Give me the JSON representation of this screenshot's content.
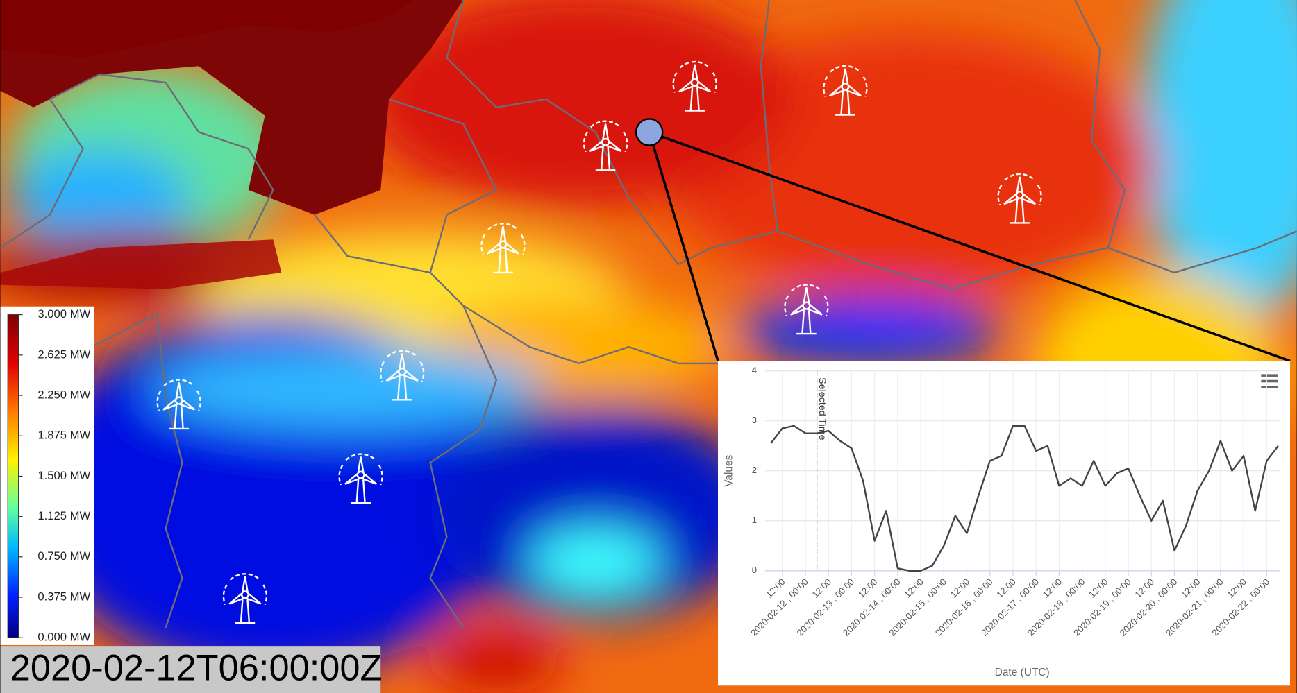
{
  "timestamp": "2020-02-12T06:00:00Z",
  "legend": {
    "range": [
      0,
      3
    ],
    "ticks": [
      {
        "value": 3,
        "label": "3.000 MW"
      },
      {
        "value": 2.625,
        "label": "2.625 MW"
      },
      {
        "value": 2.25,
        "label": "2.250 MW"
      },
      {
        "value": 1.875,
        "label": "1.875 MW"
      },
      {
        "value": 1.5,
        "label": "1.500 MW"
      },
      {
        "value": 1.125,
        "label": "1.125 MW"
      },
      {
        "value": 0.75,
        "label": "0.750 MW"
      },
      {
        "value": 0.375,
        "label": "0.375 MW"
      },
      {
        "value": 0,
        "label": "0.000 MW"
      }
    ]
  },
  "chart_data": {
    "type": "line",
    "y_label": "Values",
    "x_label": "Date (UTC)",
    "ylim": [
      0,
      4
    ],
    "yticks": [
      0,
      1,
      2,
      3,
      4
    ],
    "xlim": [
      "2020-02-11T03:00",
      "2020-02-22T07:00"
    ],
    "xticks": [
      {
        "value": "2020-02-11T12:00",
        "label": "12:00"
      },
      {
        "value": "2020-02-12T00:00",
        "label": "2020-02-12 , 00:00"
      },
      {
        "value": "2020-02-12T12:00",
        "label": "12:00"
      },
      {
        "value": "2020-02-13T00:00",
        "label": "2020-02-13 , 00:00"
      },
      {
        "value": "2020-02-13T12:00",
        "label": "12:00"
      },
      {
        "value": "2020-02-14T00:00",
        "label": "2020-02-14 , 00:00"
      },
      {
        "value": "2020-02-14T12:00",
        "label": "12:00"
      },
      {
        "value": "2020-02-15T00:00",
        "label": "2020-02-15 , 00:00"
      },
      {
        "value": "2020-02-15T12:00",
        "label": "12:00"
      },
      {
        "value": "2020-02-16T00:00",
        "label": "2020-02-16 , 00:00"
      },
      {
        "value": "2020-02-16T12:00",
        "label": "12:00"
      },
      {
        "value": "2020-02-17T00:00",
        "label": "2020-02-17 , 00:00"
      },
      {
        "value": "2020-02-17T12:00",
        "label": "12:00"
      },
      {
        "value": "2020-02-18T00:00",
        "label": "2020-02-18 , 00:00"
      },
      {
        "value": "2020-02-18T12:00",
        "label": "12:00"
      },
      {
        "value": "2020-02-19T00:00",
        "label": "2020-02-19 , 00:00"
      },
      {
        "value": "2020-02-19T12:00",
        "label": "12:00"
      },
      {
        "value": "2020-02-20T00:00",
        "label": "2020-02-20 , 00:00"
      },
      {
        "value": "2020-02-20T12:00",
        "label": "12:00"
      },
      {
        "value": "2020-02-21T00:00",
        "label": "2020-02-21 , 00:00"
      },
      {
        "value": "2020-02-21T12:00",
        "label": "12:00"
      },
      {
        "value": "2020-02-22T00:00",
        "label": "2020-02-22 , 00:00"
      }
    ],
    "annotations": [
      {
        "text": "Selected Time",
        "x": "2020-02-12T06:00"
      }
    ],
    "series": [
      {
        "color": "#444444",
        "x": [
          "2020-02-11T06:00",
          "2020-02-11T12:00",
          "2020-02-11T18:00",
          "2020-02-12T00:00",
          "2020-02-12T06:00",
          "2020-02-12T12:00",
          "2020-02-12T18:00",
          "2020-02-13T00:00",
          "2020-02-13T06:00",
          "2020-02-13T12:00",
          "2020-02-13T18:00",
          "2020-02-14T00:00",
          "2020-02-14T06:00",
          "2020-02-14T12:00",
          "2020-02-14T18:00",
          "2020-02-15T00:00",
          "2020-02-15T06:00",
          "2020-02-15T12:00",
          "2020-02-15T18:00",
          "2020-02-16T00:00",
          "2020-02-16T06:00",
          "2020-02-16T12:00",
          "2020-02-16T18:00",
          "2020-02-17T00:00",
          "2020-02-17T06:00",
          "2020-02-17T12:00",
          "2020-02-17T18:00",
          "2020-02-18T00:00",
          "2020-02-18T06:00",
          "2020-02-18T12:00",
          "2020-02-18T18:00",
          "2020-02-19T00:00",
          "2020-02-19T06:00",
          "2020-02-19T12:00",
          "2020-02-19T18:00",
          "2020-02-20T00:00",
          "2020-02-20T06:00",
          "2020-02-20T12:00",
          "2020-02-20T18:00",
          "2020-02-21T00:00",
          "2020-02-21T06:00",
          "2020-02-21T12:00",
          "2020-02-21T18:00",
          "2020-02-22T00:00",
          "2020-02-22T06:00"
        ],
        "values": [
          2.55,
          2.85,
          2.9,
          2.75,
          2.75,
          2.8,
          2.6,
          2.45,
          1.8,
          0.6,
          1.2,
          0.05,
          0,
          0,
          0.1,
          0.5,
          1.1,
          0.75,
          1.5,
          2.2,
          2.3,
          2.9,
          2.9,
          2.4,
          2.5,
          1.7,
          1.85,
          1.7,
          2.2,
          1.7,
          1.95,
          2.05,
          1.5,
          1.0,
          1.4,
          0.4,
          0.9,
          1.6,
          2.0,
          2.6,
          2.0,
          2.3,
          1.2,
          2.2,
          2.5
        ]
      }
    ]
  }
}
